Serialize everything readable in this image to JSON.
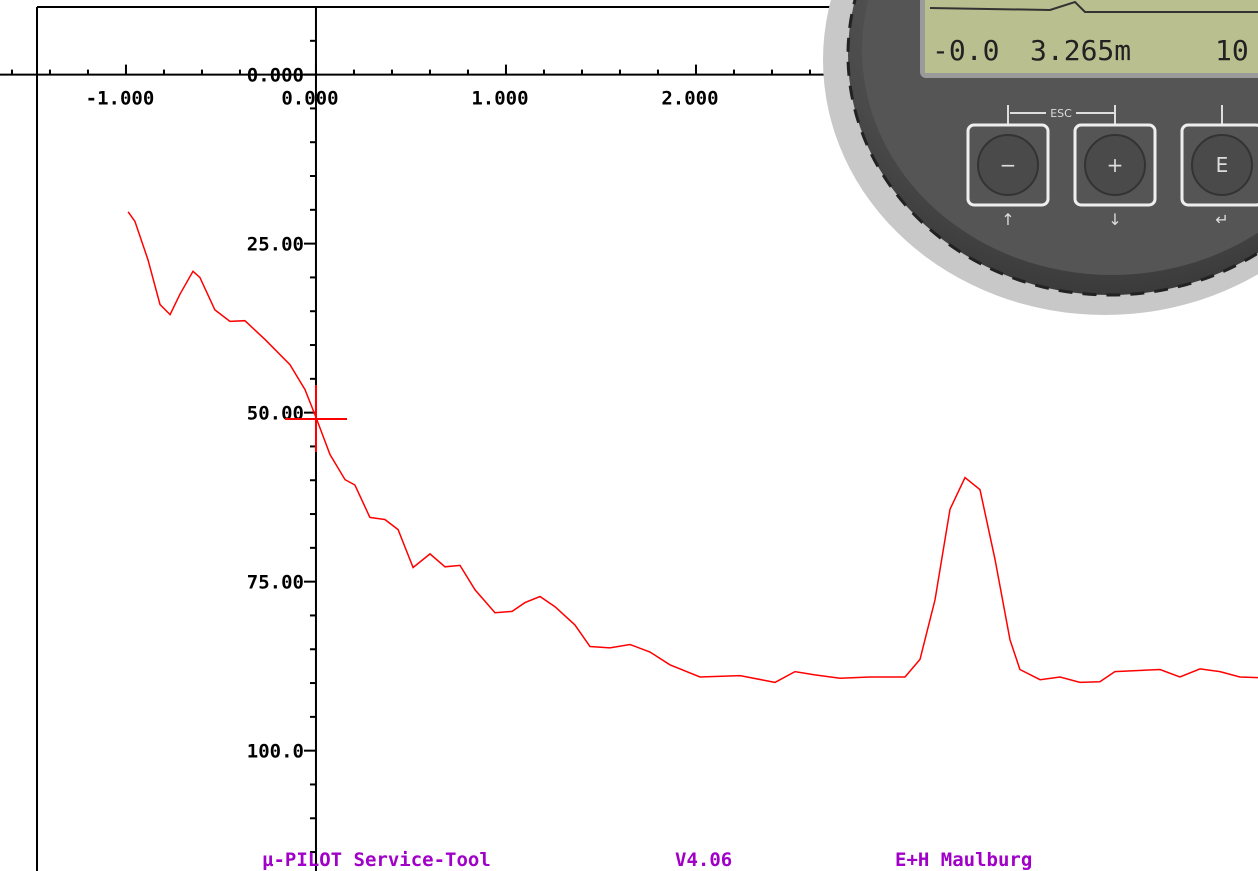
{
  "chart_data": {
    "type": "line",
    "x": [
      -0.989,
      -0.953,
      -0.884,
      -0.821,
      -0.768,
      -0.716,
      -0.647,
      -0.611,
      -0.532,
      -0.453,
      -0.374,
      -0.268,
      -0.137,
      -0.058,
      0,
      0.074,
      0.153,
      0.205,
      0.284,
      0.363,
      0.432,
      0.511,
      0.6,
      0.679,
      0.758,
      0.837,
      0.942,
      1.032,
      1.1,
      1.179,
      1.258,
      1.363,
      1.442,
      1.547,
      1.653,
      1.758,
      1.863,
      2.021,
      2.232,
      2.416,
      2.521,
      2.626,
      2.758,
      2.916,
      3.1,
      3.179,
      3.258,
      3.337,
      3.416,
      3.495,
      3.574,
      3.653,
      3.705,
      3.811,
      3.916,
      4.021,
      4.126,
      4.205,
      4.442,
      4.547,
      4.653,
      4.758,
      4.863,
      4.958
    ],
    "series": [
      {
        "color": "#ff0000",
        "values": [
          20.3,
          21.7,
          27.4,
          34.0,
          35.5,
          32.5,
          29.1,
          30.0,
          34.8,
          36.5,
          36.4,
          39.2,
          42.9,
          46.6,
          50.7,
          56.2,
          59.9,
          60.7,
          65.5,
          65.8,
          67.3,
          72.9,
          70.9,
          72.8,
          72.6,
          76.2,
          79.6,
          79.4,
          78.1,
          77.2,
          78.7,
          81.4,
          84.6,
          84.8,
          84.3,
          85.4,
          87.3,
          89.1,
          88.9,
          89.9,
          88.3,
          88.8,
          89.3,
          89.1,
          89.1,
          86.5,
          77.7,
          64.3,
          59.6,
          61.4,
          71.7,
          83.6,
          88.0,
          89.5,
          89.1,
          89.9,
          89.8,
          88.3,
          88.0,
          89.1,
          87.9,
          88.3,
          89.1,
          89.2
        ]
      }
    ],
    "xlim": [
      -1.663,
      4.958
    ],
    "ylim": [
      117.8,
      -10
    ],
    "xticks": [
      {
        "value": -1,
        "label": "-1.000"
      },
      {
        "value": 0,
        "label": "0.000"
      },
      {
        "value": 1,
        "label": "1.000"
      },
      {
        "value": 2,
        "label": "2.000"
      }
    ],
    "yticks": [
      {
        "value": 0,
        "label": "0.000"
      },
      {
        "value": 25,
        "label": "25.00"
      },
      {
        "value": 50,
        "label": "50.00"
      },
      {
        "value": 75,
        "label": "75.00"
      },
      {
        "value": 100,
        "label": "100.0"
      }
    ]
  },
  "device": {
    "lcd": [
      "-0.0",
      "3.265m",
      "10"
    ],
    "esc": "ESC",
    "buttons": [
      {
        "symbol": "−",
        "arrow": "↑"
      },
      {
        "symbol": "+",
        "arrow": "↓"
      },
      {
        "symbol": "E",
        "arrow": "↵"
      }
    ]
  },
  "footer": [
    "µ-PILOT Service-Tool",
    "V4.06",
    "E+H Maulburg"
  ]
}
